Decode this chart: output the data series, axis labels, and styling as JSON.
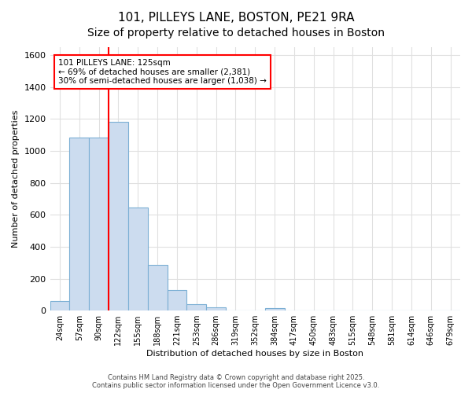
{
  "title1": "101, PILLEYS LANE, BOSTON, PE21 9RA",
  "title2": "Size of property relative to detached houses in Boston",
  "xlabel": "Distribution of detached houses by size in Boston",
  "ylabel": "Number of detached properties",
  "categories": [
    "24sqm",
    "57sqm",
    "90sqm",
    "122sqm",
    "155sqm",
    "188sqm",
    "221sqm",
    "253sqm",
    "286sqm",
    "319sqm",
    "352sqm",
    "384sqm",
    "417sqm",
    "450sqm",
    "483sqm",
    "515sqm",
    "548sqm",
    "581sqm",
    "614sqm",
    "646sqm",
    "679sqm"
  ],
  "values": [
    62,
    1085,
    1085,
    1180,
    645,
    285,
    130,
    40,
    20,
    0,
    0,
    18,
    0,
    0,
    0,
    0,
    0,
    0,
    0,
    0,
    0
  ],
  "bar_color": "#ccdcef",
  "bar_edge_color": "#7bafd4",
  "red_line_x": 3,
  "annotation_line1": "101 PILLEYS LANE: 125sqm",
  "annotation_line2": "← 69% of detached houses are smaller (2,381)",
  "annotation_line3": "30% of semi-detached houses are larger (1,038) →",
  "ylim": [
    0,
    1650
  ],
  "yticks": [
    0,
    200,
    400,
    600,
    800,
    1000,
    1200,
    1400,
    1600
  ],
  "bg_color": "#ffffff",
  "grid_color": "#e0e0e0",
  "title1_fontsize": 11,
  "title2_fontsize": 10,
  "footer1": "Contains HM Land Registry data © Crown copyright and database right 2025.",
  "footer2": "Contains public sector information licensed under the Open Government Licence v3.0."
}
